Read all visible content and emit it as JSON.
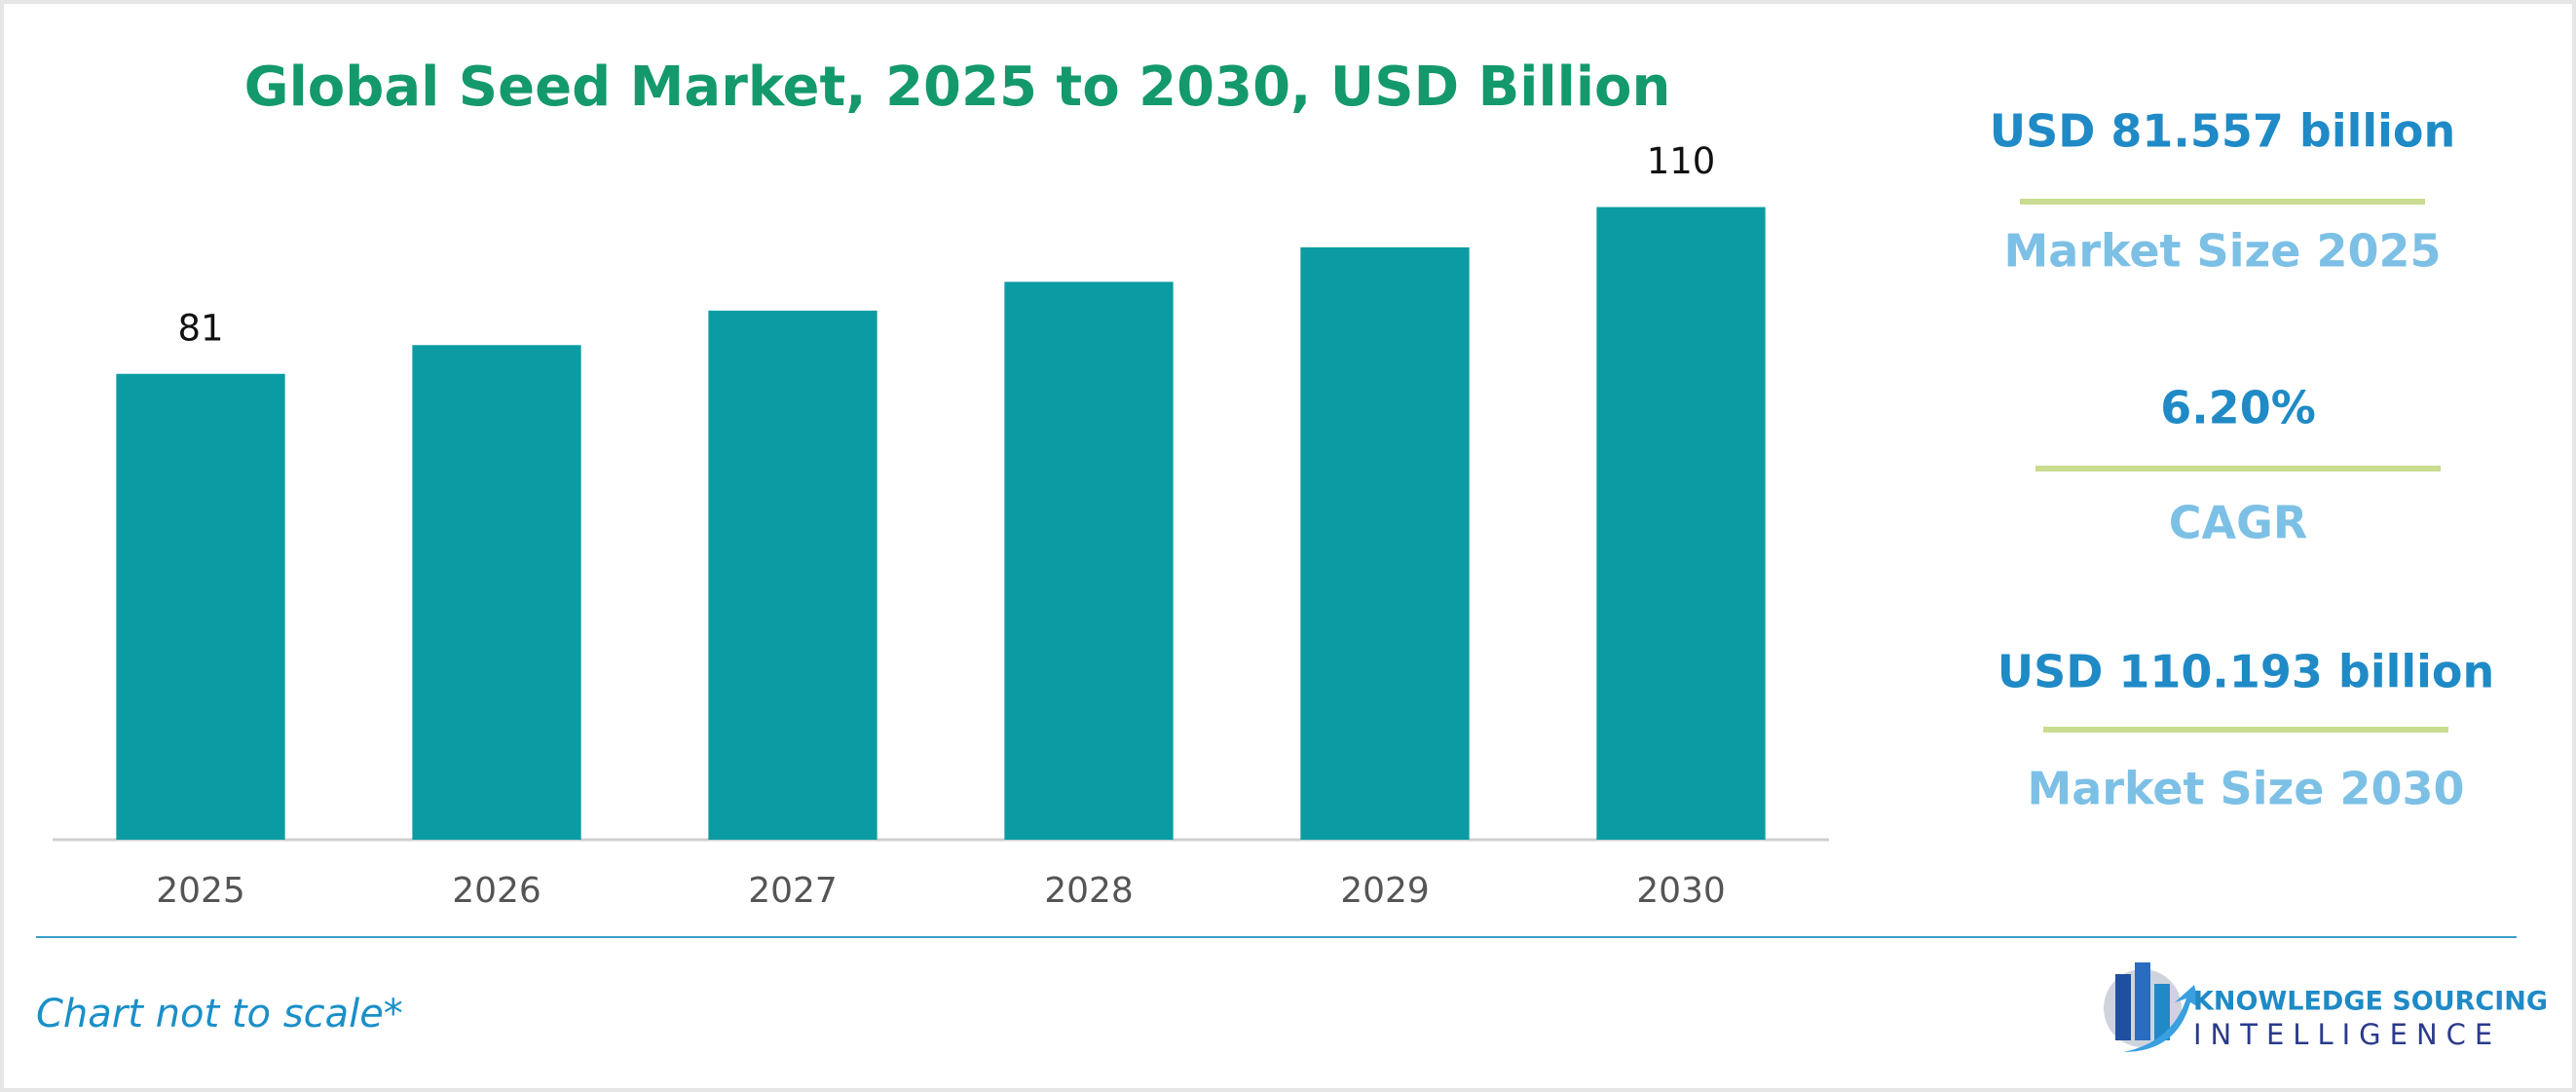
{
  "chart_data": {
    "type": "bar",
    "title": "Global Seed Market, 2025 to 2030, USD Billion",
    "categories": [
      "2025",
      "2026",
      "2027",
      "2028",
      "2029",
      "2030"
    ],
    "values": [
      81,
      86,
      92,
      97,
      103,
      110
    ],
    "value_labels": [
      "81",
      null,
      null,
      null,
      null,
      "110"
    ],
    "color": "#0a9ca2",
    "ylim": [
      0,
      125
    ]
  },
  "side_panel": [
    {
      "value": "USD 81.557 billion",
      "label": "Market Size 2025"
    },
    {
      "value": "6.20%",
      "label": "CAGR"
    },
    {
      "value": "USD 110.193 billion",
      "label": "Market Size 2030"
    }
  ],
  "footnote": "Chart not to scale*",
  "logo": {
    "line1": "KNOWLEDGE SOURCING",
    "line2": "INTELLIGENCE"
  }
}
